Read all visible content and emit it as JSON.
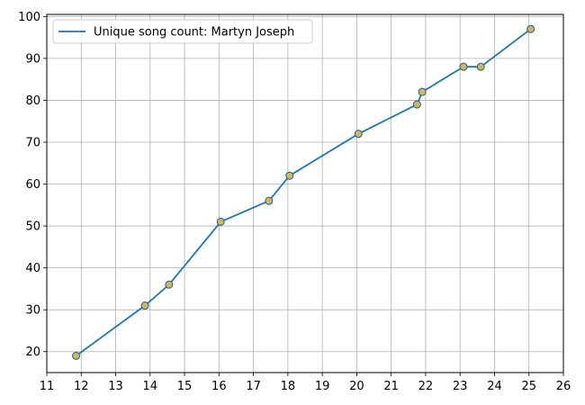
{
  "colors": {
    "line": "#1f77b4",
    "marker_fill": "#c8b96a",
    "marker_edge": "#2d5a7a",
    "grid": "#b0b0b0",
    "axes": "#000000"
  },
  "legend": {
    "label": "Unique song count: Martyn Joseph",
    "placement": "upper-left"
  },
  "chart_data": {
    "type": "line",
    "title": "",
    "xlabel": "",
    "ylabel": "",
    "grid": true,
    "xlim": [
      11,
      26
    ],
    "ylim": [
      15,
      100.5
    ],
    "xticks": [
      11,
      12,
      13,
      14,
      15,
      16,
      17,
      18,
      19,
      20,
      21,
      22,
      23,
      24,
      25,
      26
    ],
    "yticks": [
      20,
      30,
      40,
      50,
      60,
      70,
      80,
      90,
      100
    ],
    "series": [
      {
        "name": "Unique song count: Martyn Joseph",
        "x": [
          11.85,
          13.85,
          14.55,
          16.05,
          17.45,
          18.05,
          20.05,
          21.75,
          21.9,
          23.1,
          23.6,
          25.05
        ],
        "y": [
          19,
          31,
          36,
          51,
          56,
          62,
          72,
          79,
          82,
          88,
          88,
          97
        ]
      }
    ]
  }
}
